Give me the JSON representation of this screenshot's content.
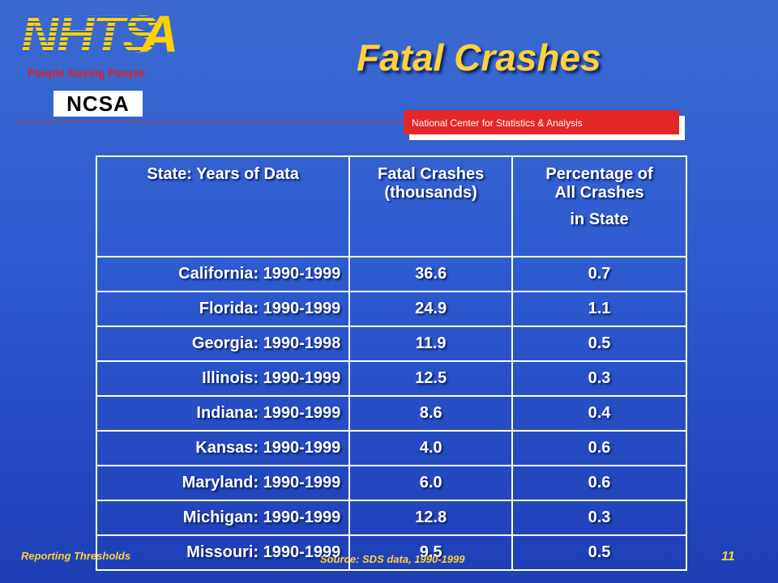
{
  "branding": {
    "logo_text": "NHTSA",
    "tagline": "People Saving People",
    "org_logo_text": "NCSA",
    "org_name": "National Center for Statistics & Analysis"
  },
  "slide": {
    "title": "Fatal Crashes",
    "footer_left": "Reporting Thresholds",
    "source": "Source: SDS data, 1990-1999",
    "page_number": "11"
  },
  "table": {
    "headers": {
      "state": "State: Years of Data",
      "crashes_line1": "Fatal Crashes",
      "crashes_line2": "(thousands)",
      "pct_line1": "Percentage of",
      "pct_line2": "All Crashes",
      "pct_line3": "in State"
    },
    "rows": [
      {
        "state": "California: 1990-1999",
        "crashes": "36.6",
        "pct": "0.7"
      },
      {
        "state": "Florida: 1990-1999",
        "crashes": "24.9",
        "pct": "1.1"
      },
      {
        "state": "Georgia: 1990-1998",
        "crashes": "11.9",
        "pct": "0.5"
      },
      {
        "state": "Illinois: 1990-1999",
        "crashes": "12.5",
        "pct": "0.3"
      },
      {
        "state": "Indiana: 1990-1999",
        "crashes": "8.6",
        "pct": "0.4"
      },
      {
        "state": "Kansas: 1990-1999",
        "crashes": "4.0",
        "pct": "0.6"
      },
      {
        "state": "Maryland: 1990-1999",
        "crashes": "6.0",
        "pct": "0.6"
      },
      {
        "state": "Michigan: 1990-1999",
        "crashes": "12.8",
        "pct": "0.3"
      },
      {
        "state": "Missouri: 1990-1999",
        "crashes": "9.5",
        "pct": "0.5"
      }
    ]
  },
  "colors": {
    "title": "#ffd23a",
    "accent_red": "#e32626",
    "background": "#2d5bd0"
  }
}
